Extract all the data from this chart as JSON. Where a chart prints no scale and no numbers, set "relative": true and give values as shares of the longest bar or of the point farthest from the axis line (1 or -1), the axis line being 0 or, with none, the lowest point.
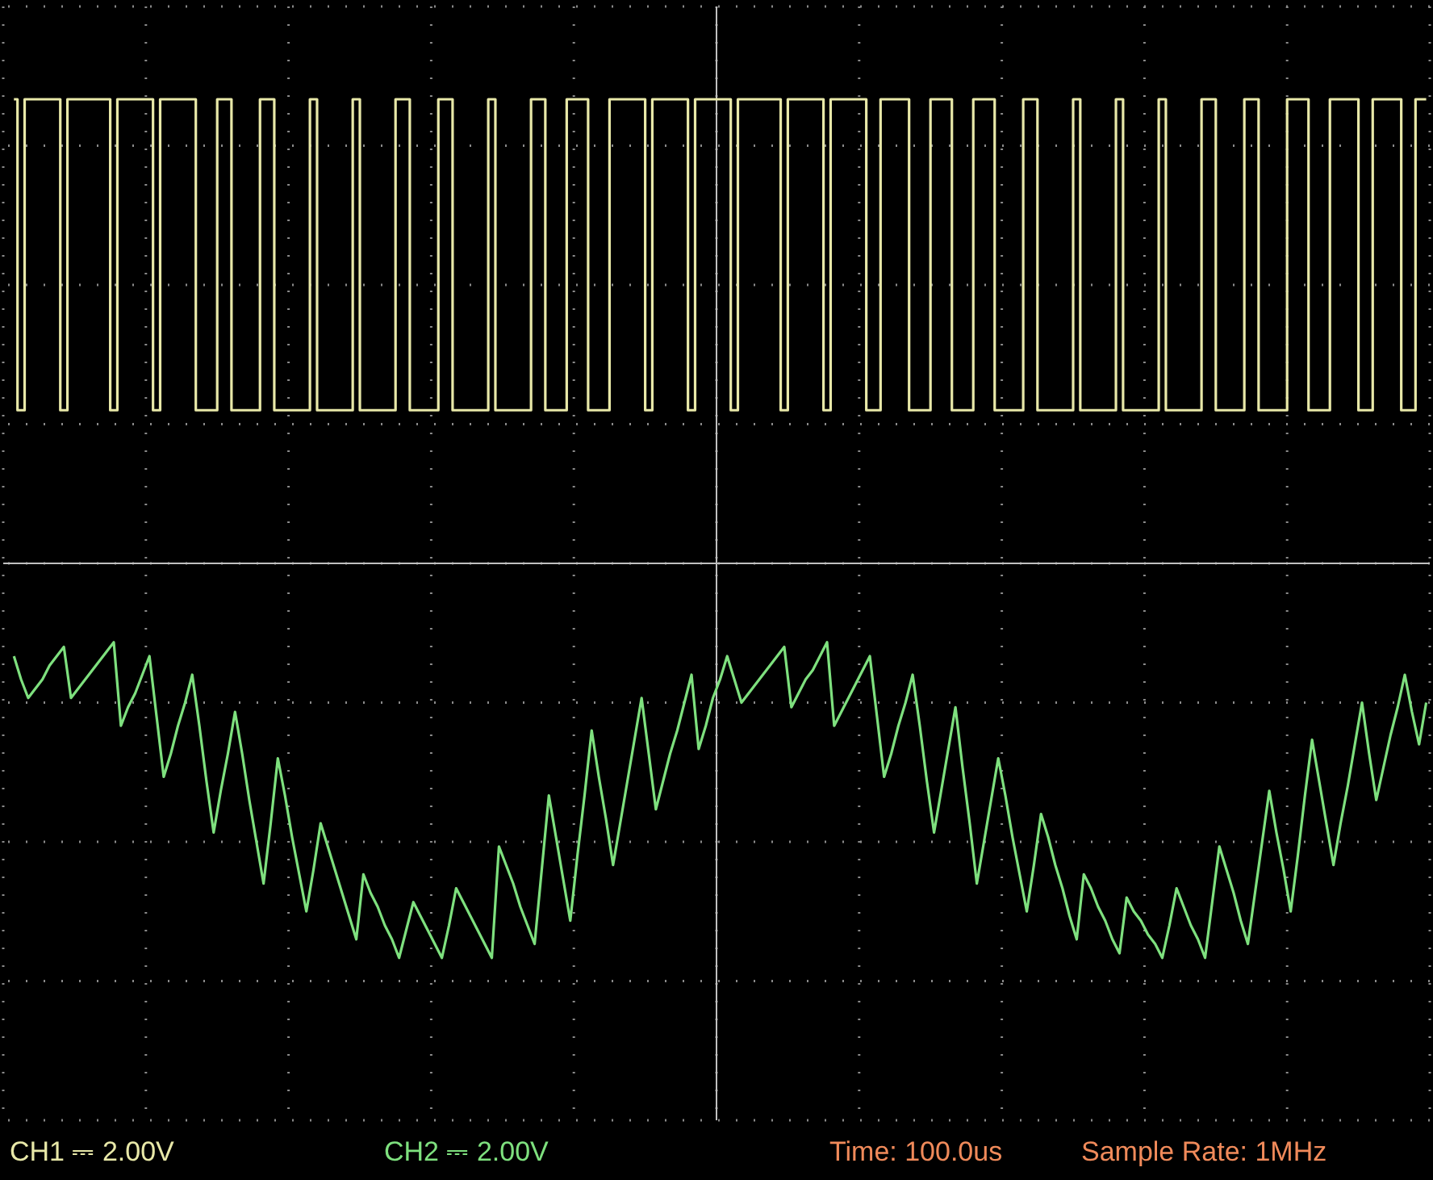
{
  "chart_data": {
    "type": "line",
    "relative": true,
    "grid": true,
    "categories": [
      null,
      null,
      null,
      null,
      null,
      null,
      null,
      null,
      null,
      null,
      null,
      null,
      null,
      null,
      null,
      null,
      null,
      null,
      null,
      null,
      null,
      null,
      null,
      null,
      null,
      null,
      null,
      null,
      null,
      null,
      null,
      null,
      null,
      null,
      null,
      null,
      null,
      null,
      null,
      null,
      null,
      null,
      null,
      null,
      null,
      null,
      null,
      null,
      null,
      null,
      null,
      null,
      null,
      null,
      null,
      null,
      null,
      null,
      null,
      null,
      null,
      null,
      null,
      null,
      null,
      null,
      null,
      null,
      null,
      null,
      null,
      null,
      null,
      null,
      null,
      null,
      null,
      null,
      null,
      null,
      null,
      null,
      null,
      null,
      null,
      null,
      null,
      null,
      null,
      null,
      null,
      null,
      null,
      null,
      null,
      null,
      null,
      null,
      null,
      null,
      null,
      null,
      null,
      null,
      null,
      null,
      null,
      null,
      null,
      null,
      null,
      null,
      null,
      null,
      null,
      null,
      null,
      null,
      null,
      null,
      null,
      null,
      null,
      null,
      null,
      null,
      null,
      null,
      null,
      null,
      null,
      null,
      null,
      null,
      null,
      null,
      null,
      null,
      null,
      null,
      null,
      null,
      null,
      null,
      null,
      null,
      null,
      null,
      null,
      null,
      null,
      null,
      null,
      null,
      null,
      null,
      null,
      null,
      null,
      null,
      null,
      null,
      null,
      null,
      null,
      null,
      null,
      null,
      null,
      null,
      null,
      null,
      null,
      null,
      null,
      null,
      null,
      null,
      null,
      null,
      null,
      null,
      null,
      null,
      null,
      null,
      null,
      null,
      null,
      null,
      null,
      null,
      null,
      null,
      null,
      null,
      null,
      null,
      null,
      null
    ],
    "annotations": [
      "CH1 ⎓ 2.00V",
      "CH2 ⎓ 2.00V",
      "Time: 100.0us",
      "Sample Rate: 1MHz"
    ],
    "series": [
      {
        "type": "step",
        "color": "#e8e8a8",
        "values": [
          null,
          1,
          0.33,
          1,
          1,
          1,
          1,
          1,
          0.33,
          1,
          1,
          1,
          1,
          1,
          1,
          0.33,
          1,
          1,
          1,
          1,
          1,
          0.33,
          1,
          1,
          1,
          1,
          1,
          0.33,
          0.33,
          0.33,
          1,
          1,
          0.33,
          0.33,
          0.33,
          0.33,
          1,
          1,
          0.33,
          0.33,
          0.33,
          0.33,
          0.33,
          1,
          0.33,
          0.33,
          0.33,
          0.33,
          0.33,
          1,
          0.33,
          0.33,
          0.33,
          0.33,
          0.33,
          1,
          1,
          0.33,
          0.33,
          0.33,
          0.33,
          1,
          1,
          0.33,
          0.33,
          0.33,
          0.33,
          0.33,
          1,
          0.33,
          0.33,
          0.33,
          0.33,
          0.33,
          1,
          1,
          0.33,
          0.33,
          0.33,
          1,
          1,
          1,
          0.33,
          0.33,
          0.33,
          1,
          1,
          1,
          1,
          1,
          0.33,
          1,
          1,
          1,
          1,
          1,
          0.33,
          1,
          1,
          1,
          1,
          1,
          0.33,
          1,
          1,
          1,
          1,
          1,
          1,
          0.33,
          1,
          1,
          1,
          1,
          1,
          0.33,
          1,
          1,
          1,
          1,
          1,
          0.33,
          0.33,
          1,
          1,
          1,
          1,
          0.33,
          0.33,
          0.33,
          1,
          1,
          1,
          0.33,
          0.33,
          0.33,
          1,
          1,
          1,
          0.33,
          0.33,
          0.33,
          0.33,
          1,
          1,
          0.33,
          0.33,
          0.33,
          0.33,
          0.33,
          1,
          0.33,
          0.33,
          0.33,
          0.33,
          0.33,
          1,
          0.33,
          0.33,
          0.33,
          0.33,
          0.33,
          1,
          0.33,
          0.33,
          0.33,
          0.33,
          0.33,
          1,
          1,
          0.33,
          0.33,
          0.33,
          0.33,
          1,
          1,
          0.33,
          0.33,
          0.33,
          0.33,
          1,
          1,
          1,
          0.33,
          0.33,
          0.33,
          1,
          1,
          1,
          1,
          0.33,
          0.33,
          1,
          1,
          1,
          1,
          0.33,
          0.33,
          1,
          1
        ]
      },
      {
        "color": "#7ee07e",
        "values": [
          null,
          -0.2,
          -0.25,
          -0.29,
          -0.27,
          -0.25,
          -0.22,
          -0.2,
          -0.18,
          -0.29,
          -0.27,
          -0.25,
          -0.23,
          -0.21,
          -0.19,
          -0.17,
          -0.35,
          -0.31,
          -0.28,
          -0.24,
          -0.2,
          -0.33,
          -0.46,
          -0.41,
          -0.35,
          -0.3,
          -0.24,
          -0.35,
          -0.47,
          -0.58,
          -0.49,
          -0.41,
          -0.32,
          -0.41,
          -0.51,
          -0.6,
          -0.69,
          -0.56,
          -0.42,
          -0.5,
          -0.59,
          -0.67,
          -0.75,
          -0.66,
          -0.56,
          -0.61,
          -0.66,
          -0.71,
          -0.76,
          -0.81,
          -0.67,
          -0.71,
          -0.74,
          -0.78,
          -0.81,
          -0.85,
          -0.79,
          -0.73,
          -0.76,
          -0.79,
          -0.82,
          -0.85,
          -0.78,
          -0.7,
          -0.73,
          -0.76,
          -0.79,
          -0.82,
          -0.85,
          -0.61,
          -0.65,
          -0.69,
          -0.74,
          -0.78,
          -0.82,
          -0.66,
          -0.5,
          -0.59,
          -0.68,
          -0.77,
          -0.63,
          -0.5,
          -0.36,
          -0.46,
          -0.55,
          -0.65,
          -0.56,
          -0.47,
          -0.38,
          -0.29,
          -0.41,
          -0.53,
          -0.47,
          -0.41,
          -0.36,
          -0.3,
          -0.24,
          -0.4,
          -0.35,
          -0.29,
          -0.25,
          -0.2,
          -0.25,
          -0.3,
          -0.28,
          -0.26,
          -0.24,
          -0.22,
          -0.2,
          -0.18,
          -0.31,
          -0.28,
          -0.25,
          -0.23,
          -0.2,
          -0.17,
          -0.35,
          -0.32,
          -0.29,
          -0.26,
          -0.23,
          -0.2,
          -0.33,
          -0.46,
          -0.41,
          -0.35,
          -0.3,
          -0.24,
          -0.35,
          -0.47,
          -0.58,
          -0.49,
          -0.4,
          -0.31,
          -0.44,
          -0.56,
          -0.69,
          -0.6,
          -0.51,
          -0.42,
          -0.5,
          -0.59,
          -0.67,
          -0.75,
          -0.65,
          -0.54,
          -0.59,
          -0.65,
          -0.7,
          -0.76,
          -0.81,
          -0.67,
          -0.7,
          -0.74,
          -0.77,
          -0.81,
          -0.84,
          -0.72,
          -0.75,
          -0.77,
          -0.8,
          -0.82,
          -0.85,
          -0.78,
          -0.7,
          -0.74,
          -0.78,
          -0.81,
          -0.85,
          -0.73,
          -0.61,
          -0.66,
          -0.71,
          -0.77,
          -0.82,
          -0.71,
          -0.6,
          -0.49,
          -0.58,
          -0.66,
          -0.75,
          -0.63,
          -0.5,
          -0.38,
          -0.47,
          -0.56,
          -0.65,
          -0.56,
          -0.48,
          -0.39,
          -0.3,
          -0.41,
          -0.51,
          -0.44,
          -0.37,
          -0.31,
          -0.24,
          -0.32,
          -0.39,
          -0.3
        ]
      }
    ]
  }
}
